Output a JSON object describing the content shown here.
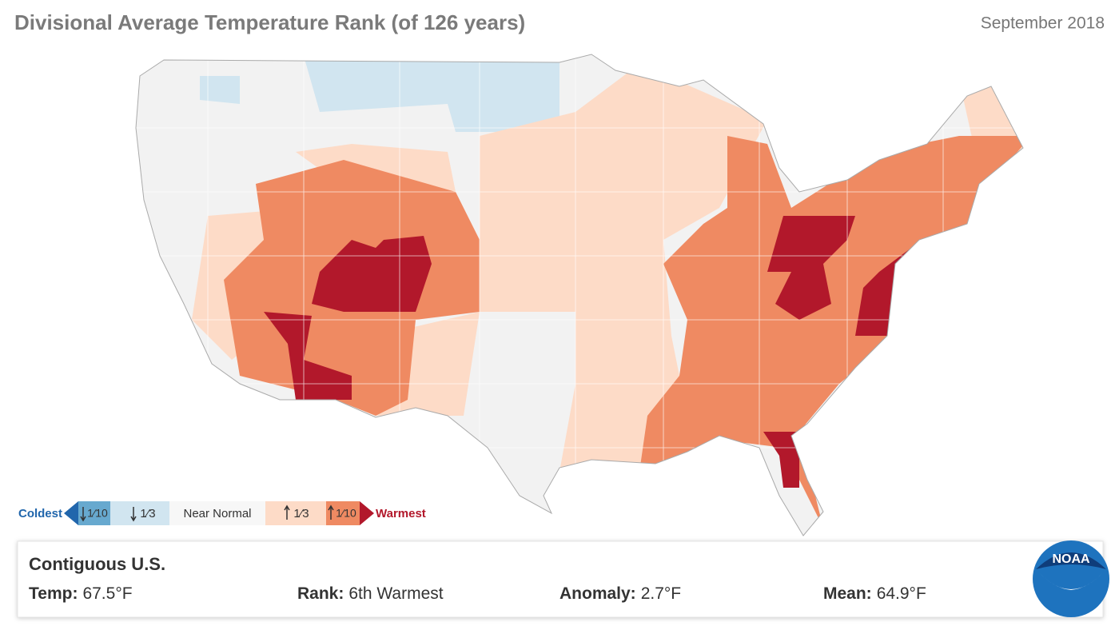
{
  "header": {
    "title": "Divisional Average Temperature Rank (of 126 years)",
    "date": "September 2018"
  },
  "legend": {
    "coldest": "Coldest",
    "items": [
      "1⁄10",
      "1⁄3",
      "Near Normal",
      "1⁄3",
      "1⁄10"
    ],
    "warmest": "Warmest"
  },
  "summary": {
    "region": "Contiguous U.S.",
    "fields": [
      {
        "label": "Temp:",
        "value": "67.5°F"
      },
      {
        "label": "Rank:",
        "value": "6th Warmest"
      },
      {
        "label": "Anomaly:",
        "value": "2.7°F"
      },
      {
        "label": "Mean:",
        "value": "64.9°F"
      }
    ]
  },
  "logo": "NOAA"
}
